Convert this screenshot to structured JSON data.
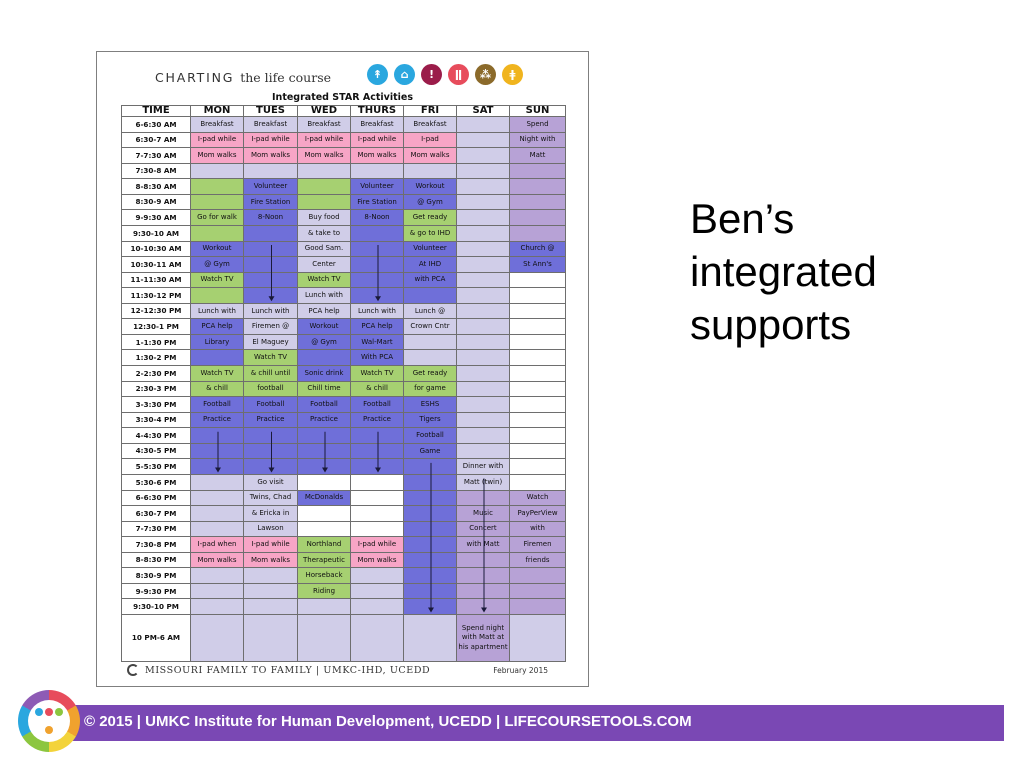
{
  "doc": {
    "header_charting": "CHARTING",
    "header_life": "the life course",
    "subtitle": "Integrated STAR Activities",
    "footer": "MISSOURI FAMILY TO FAMILY | UMKC-IHD, UCEDD",
    "date": "February 2015",
    "header_icons": [
      {
        "icon": "person-running-icon",
        "color": "#2aa7df"
      },
      {
        "icon": "family-icon",
        "color": "#2aa7df"
      },
      {
        "icon": "person-standing-icon",
        "color": "#9b1c4a"
      },
      {
        "icon": "two-people-icon",
        "color": "#e74c5c"
      },
      {
        "icon": "group-icon",
        "color": "#8b6a2a"
      },
      {
        "icon": "elderly-couple-icon",
        "color": "#f0b41e"
      }
    ]
  },
  "schedule": {
    "headers": [
      "TIME",
      "MON",
      "TUES",
      "WED",
      "THURS",
      "FRI",
      "SAT",
      "SUN"
    ],
    "rows": [
      {
        "time": "6-6:30 AM",
        "cells": [
          [
            "Breakfast",
            "l"
          ],
          [
            "Breakfast",
            "l"
          ],
          [
            "Breakfast",
            "l"
          ],
          [
            "Breakfast",
            "l"
          ],
          [
            "Breakfast",
            "l"
          ],
          [
            "",
            "l"
          ],
          [
            "Spend",
            "m"
          ]
        ]
      },
      {
        "time": "6:30-7 AM",
        "cells": [
          [
            "I-pad while",
            "p"
          ],
          [
            "I-pad while",
            "p"
          ],
          [
            "I-pad while",
            "p"
          ],
          [
            "I-pad while",
            "p"
          ],
          [
            "I-pad",
            "p"
          ],
          [
            "",
            "l"
          ],
          [
            "Night with",
            "m"
          ]
        ]
      },
      {
        "time": "7-7:30 AM",
        "cells": [
          [
            "Mom walks",
            "p"
          ],
          [
            "Mom walks",
            "p"
          ],
          [
            "Mom walks",
            "p"
          ],
          [
            "Mom walks",
            "p"
          ],
          [
            "Mom walks",
            "p"
          ],
          [
            "",
            "l"
          ],
          [
            "Matt",
            "m"
          ]
        ]
      },
      {
        "time": "7:30-8 AM",
        "cells": [
          [
            "",
            "l"
          ],
          [
            "",
            "l"
          ],
          [
            "",
            "l"
          ],
          [
            "",
            "l"
          ],
          [
            "",
            "l"
          ],
          [
            "",
            "l"
          ],
          [
            "",
            "m"
          ]
        ]
      },
      {
        "time": "8-8:30 AM",
        "cells": [
          [
            "",
            "g"
          ],
          [
            "Volunteer",
            "b"
          ],
          [
            "",
            "g"
          ],
          [
            "Volunteer",
            "b"
          ],
          [
            "Workout",
            "b"
          ],
          [
            "",
            "l"
          ],
          [
            "",
            "m"
          ]
        ]
      },
      {
        "time": "8:30-9 AM",
        "cells": [
          [
            "",
            "g"
          ],
          [
            "Fire Station",
            "b"
          ],
          [
            "",
            "g"
          ],
          [
            "Fire Station",
            "b"
          ],
          [
            "@ Gym",
            "b"
          ],
          [
            "",
            "l"
          ],
          [
            "",
            "m"
          ]
        ]
      },
      {
        "time": "9-9:30 AM",
        "cells": [
          [
            "Go for walk",
            "g"
          ],
          [
            "8-Noon",
            "b"
          ],
          [
            "Buy food",
            "l"
          ],
          [
            "8-Noon",
            "b"
          ],
          [
            "Get ready",
            "g"
          ],
          [
            "",
            "l"
          ],
          [
            "",
            "m"
          ]
        ]
      },
      {
        "time": "9:30-10 AM",
        "cells": [
          [
            "",
            "g"
          ],
          [
            "",
            "b"
          ],
          [
            "& take to",
            "l"
          ],
          [
            "",
            "b"
          ],
          [
            "& go to IHD",
            "g"
          ],
          [
            "",
            "l"
          ],
          [
            "",
            "m"
          ]
        ]
      },
      {
        "time": "10-10:30 AM",
        "cells": [
          [
            "Workout",
            "b"
          ],
          [
            "",
            "b"
          ],
          [
            "Good Sam.",
            "l"
          ],
          [
            "",
            "b"
          ],
          [
            "Volunteer",
            "b"
          ],
          [
            "",
            "l"
          ],
          [
            "Church @",
            "b"
          ]
        ]
      },
      {
        "time": "10:30-11 AM",
        "cells": [
          [
            "@ Gym",
            "b"
          ],
          [
            "",
            "b"
          ],
          [
            "Center",
            "l"
          ],
          [
            "",
            "b"
          ],
          [
            "At IHD",
            "b"
          ],
          [
            "",
            "l"
          ],
          [
            "St Ann's",
            "b"
          ]
        ]
      },
      {
        "time": "11-11:30 AM",
        "cells": [
          [
            "Watch TV",
            "g"
          ],
          [
            "",
            "b"
          ],
          [
            "Watch TV",
            "g"
          ],
          [
            "",
            "b"
          ],
          [
            "with PCA",
            "b"
          ],
          [
            "",
            "l"
          ],
          [
            "",
            "n"
          ]
        ]
      },
      {
        "time": "11:30-12 PM",
        "cells": [
          [
            "",
            "g"
          ],
          [
            "",
            "b"
          ],
          [
            "Lunch with",
            "l"
          ],
          [
            "",
            "b"
          ],
          [
            "",
            "b"
          ],
          [
            "",
            "l"
          ],
          [
            "",
            "n"
          ]
        ]
      },
      {
        "time": "12-12:30 PM",
        "cells": [
          [
            "Lunch with",
            "l"
          ],
          [
            "Lunch with",
            "l"
          ],
          [
            "PCA help",
            "l"
          ],
          [
            "Lunch with",
            "l"
          ],
          [
            "Lunch @",
            "l"
          ],
          [
            "",
            "l"
          ],
          [
            "",
            "n"
          ]
        ]
      },
      {
        "time": "12:30-1 PM",
        "cells": [
          [
            "PCA help",
            "b"
          ],
          [
            "Firemen @",
            "l"
          ],
          [
            "Workout",
            "b"
          ],
          [
            "PCA help",
            "b"
          ],
          [
            "Crown Cntr",
            "l"
          ],
          [
            "",
            "l"
          ],
          [
            "",
            "n"
          ]
        ]
      },
      {
        "time": "1-1:30 PM",
        "cells": [
          [
            "Library",
            "b"
          ],
          [
            "El Maguey",
            "l"
          ],
          [
            "@ Gym",
            "b"
          ],
          [
            "Wal-Mart",
            "b"
          ],
          [
            "",
            "l"
          ],
          [
            "",
            "l"
          ],
          [
            "",
            "n"
          ]
        ]
      },
      {
        "time": "1:30-2 PM",
        "cells": [
          [
            "",
            "b"
          ],
          [
            "Watch TV",
            "g"
          ],
          [
            "",
            "b"
          ],
          [
            "With PCA",
            "b"
          ],
          [
            "",
            "l"
          ],
          [
            "",
            "l"
          ],
          [
            "",
            "n"
          ]
        ]
      },
      {
        "time": "2-2:30 PM",
        "cells": [
          [
            "Watch TV",
            "g"
          ],
          [
            "& chill until",
            "g"
          ],
          [
            "Sonic drink",
            "b"
          ],
          [
            "Watch TV",
            "g"
          ],
          [
            "Get ready",
            "g"
          ],
          [
            "",
            "l"
          ],
          [
            "",
            "n"
          ]
        ]
      },
      {
        "time": "2:30-3 PM",
        "cells": [
          [
            "& chill",
            "g"
          ],
          [
            "football",
            "g"
          ],
          [
            "Chill time",
            "g"
          ],
          [
            "& chill",
            "g"
          ],
          [
            "for game",
            "g"
          ],
          [
            "",
            "l"
          ],
          [
            "",
            "n"
          ]
        ]
      },
      {
        "time": "3-3:30 PM",
        "cells": [
          [
            "Football",
            "b"
          ],
          [
            "Football",
            "b"
          ],
          [
            "Football",
            "b"
          ],
          [
            "Football",
            "b"
          ],
          [
            "ESHS",
            "b"
          ],
          [
            "",
            "l"
          ],
          [
            "",
            "n"
          ]
        ]
      },
      {
        "time": "3:30-4 PM",
        "cells": [
          [
            "Practice",
            "b"
          ],
          [
            "Practice",
            "b"
          ],
          [
            "Practice",
            "b"
          ],
          [
            "Practice",
            "b"
          ],
          [
            "Tigers",
            "b"
          ],
          [
            "",
            "l"
          ],
          [
            "",
            "n"
          ]
        ]
      },
      {
        "time": "4-4:30 PM",
        "cells": [
          [
            "",
            "b"
          ],
          [
            "",
            "b"
          ],
          [
            "",
            "b"
          ],
          [
            "",
            "b"
          ],
          [
            "Football",
            "b"
          ],
          [
            "",
            "l"
          ],
          [
            "",
            "n"
          ]
        ]
      },
      {
        "time": "4:30-5 PM",
        "cells": [
          [
            "",
            "b"
          ],
          [
            "",
            "b"
          ],
          [
            "",
            "b"
          ],
          [
            "",
            "b"
          ],
          [
            "Game",
            "b"
          ],
          [
            "",
            "l"
          ],
          [
            "",
            "n"
          ]
        ]
      },
      {
        "time": "5-5:30 PM",
        "cells": [
          [
            "",
            "b"
          ],
          [
            "",
            "b"
          ],
          [
            "",
            "b"
          ],
          [
            "",
            "b"
          ],
          [
            "",
            "b"
          ],
          [
            "Dinner with",
            "l"
          ],
          [
            "",
            "n"
          ]
        ]
      },
      {
        "time": "5:30-6 PM",
        "cells": [
          [
            "",
            "l"
          ],
          [
            "Go visit",
            "l"
          ],
          [
            "",
            "n"
          ],
          [
            "",
            "n"
          ],
          [
            "",
            "b"
          ],
          [
            "Matt (twin)",
            "l"
          ],
          [
            "",
            "n"
          ]
        ]
      },
      {
        "time": "6-6:30 PM",
        "cells": [
          [
            "",
            "l"
          ],
          [
            "Twins, Chad",
            "l"
          ],
          [
            "McDonalds",
            "b"
          ],
          [
            "",
            "n"
          ],
          [
            "",
            "b"
          ],
          [
            "",
            "m"
          ],
          [
            "Watch",
            "m"
          ]
        ]
      },
      {
        "time": "6:30-7 PM",
        "cells": [
          [
            "",
            "l"
          ],
          [
            "& Ericka in",
            "l"
          ],
          [
            "",
            "n"
          ],
          [
            "",
            "n"
          ],
          [
            "",
            "b"
          ],
          [
            "Music",
            "m"
          ],
          [
            "PayPerView",
            "m"
          ]
        ]
      },
      {
        "time": "7-7:30 PM",
        "cells": [
          [
            "",
            "l"
          ],
          [
            "Lawson",
            "l"
          ],
          [
            "",
            "n"
          ],
          [
            "",
            "n"
          ],
          [
            "",
            "b"
          ],
          [
            "Concert",
            "m"
          ],
          [
            "with",
            "m"
          ]
        ]
      },
      {
        "time": "7:30-8 PM",
        "cells": [
          [
            "I-pad when",
            "p"
          ],
          [
            "I-pad while",
            "p"
          ],
          [
            "Northland",
            "g"
          ],
          [
            "I-pad while",
            "p"
          ],
          [
            "",
            "b"
          ],
          [
            "with Matt",
            "m"
          ],
          [
            "Firemen",
            "m"
          ]
        ]
      },
      {
        "time": "8-8:30 PM",
        "cells": [
          [
            "Mom walks",
            "p"
          ],
          [
            "Mom walks",
            "p"
          ],
          [
            "Therapeutic",
            "g"
          ],
          [
            "Mom walks",
            "p"
          ],
          [
            "",
            "b"
          ],
          [
            "",
            "m"
          ],
          [
            "friends",
            "m"
          ]
        ]
      },
      {
        "time": "8:30-9 PM",
        "cells": [
          [
            "",
            "l"
          ],
          [
            "",
            "l"
          ],
          [
            "Horseback",
            "g"
          ],
          [
            "",
            "l"
          ],
          [
            "",
            "b"
          ],
          [
            "",
            "m"
          ],
          [
            "",
            "m"
          ]
        ]
      },
      {
        "time": "9-9:30 PM",
        "cells": [
          [
            "",
            "l"
          ],
          [
            "",
            "l"
          ],
          [
            "Riding",
            "g"
          ],
          [
            "",
            "l"
          ],
          [
            "",
            "b"
          ],
          [
            "",
            "m"
          ],
          [
            "",
            "m"
          ]
        ]
      },
      {
        "time": "9:30-10 PM",
        "cells": [
          [
            "",
            "l"
          ],
          [
            "",
            "l"
          ],
          [
            "",
            "l"
          ],
          [
            "",
            "l"
          ],
          [
            "",
            "b"
          ],
          [
            "",
            "m"
          ],
          [
            "",
            "m"
          ]
        ]
      },
      {
        "time": "10 PM-6 AM",
        "cells": [
          [
            "",
            "l"
          ],
          [
            "",
            "l"
          ],
          [
            "",
            "l"
          ],
          [
            "",
            "l"
          ],
          [
            "",
            "l"
          ],
          [
            "Spend night with Matt at his apartment",
            "m"
          ],
          [
            "",
            "l"
          ]
        ]
      }
    ]
  },
  "side_text": [
    "Ben’s",
    "integrated",
    "supports"
  ],
  "footer_bar": "© 2015 | UMKC Institute for Human Development, UCEDD | LIFECOURSETOOLS.COM",
  "colors": {
    "bar": "#7a48b4",
    "green": "#a6d071",
    "blue": "#6f6fd9",
    "pink": "#f7a5c6",
    "lavender": "#d0cde8",
    "purple": "#b7a2d6"
  }
}
